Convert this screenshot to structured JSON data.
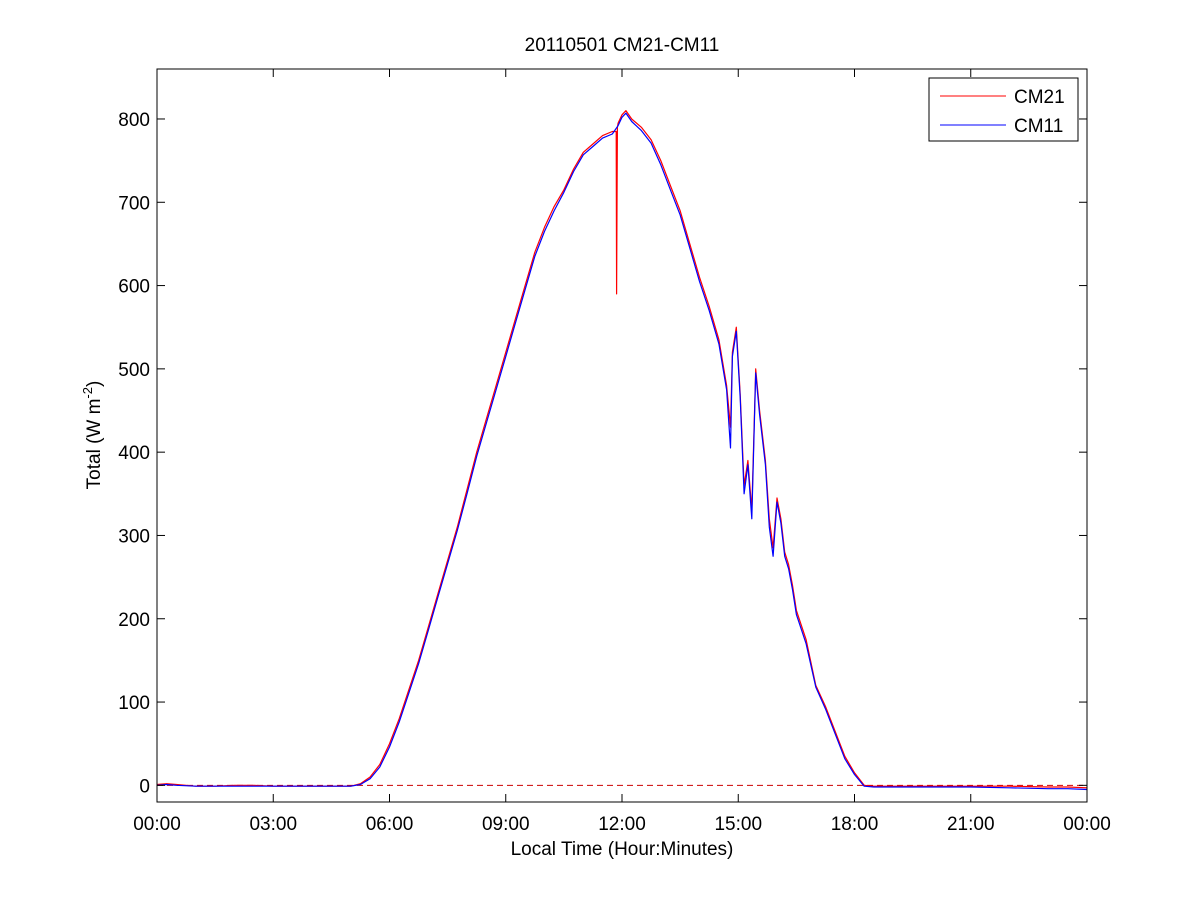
{
  "chart_data": {
    "type": "line",
    "title": "20110501 CM21-CM11",
    "xlabel": "Local Time (Hour:Minutes)",
    "ylabel": {
      "main": "Total (W m",
      "superscript": "-2",
      "close": ")"
    },
    "xlim": [
      0,
      24
    ],
    "ylim": [
      -20,
      860
    ],
    "x_unit": "hours",
    "x_ticks": [
      0,
      3,
      6,
      9,
      12,
      15,
      18,
      21,
      24
    ],
    "x_tick_labels": [
      "00:00",
      "03:00",
      "06:00",
      "09:00",
      "12:00",
      "15:00",
      "18:00",
      "21:00",
      "00:00"
    ],
    "y_ticks": [
      0,
      100,
      200,
      300,
      400,
      500,
      600,
      700,
      800
    ],
    "y_tick_labels": [
      "0",
      "100",
      "200",
      "300",
      "400",
      "500",
      "600",
      "700",
      "800"
    ],
    "grid": false,
    "legend_position": "top-right",
    "reference_line": {
      "y": 0,
      "color": "#cc0000",
      "style": "dashed"
    },
    "series": [
      {
        "name": "CM21",
        "color": "#ff0000",
        "x": [
          0,
          0.25,
          0.5,
          1,
          1.5,
          2,
          2.5,
          3,
          3.5,
          4,
          4.5,
          5,
          5.25,
          5.5,
          5.75,
          6,
          6.25,
          6.5,
          6.75,
          7,
          7.25,
          7.5,
          7.75,
          8,
          8.25,
          8.5,
          8.75,
          9,
          9.25,
          9.5,
          9.75,
          10,
          10.25,
          10.5,
          10.75,
          11,
          11.25,
          11.5,
          11.75,
          11.85,
          11.86,
          11.87,
          11.88,
          11.9,
          12,
          12.1,
          12.25,
          12.5,
          12.75,
          13,
          13.25,
          13.5,
          13.75,
          14,
          14.25,
          14.5,
          14.7,
          14.8,
          14.85,
          14.95,
          15.05,
          15.15,
          15.25,
          15.35,
          15.45,
          15.55,
          15.7,
          15.8,
          15.9,
          16,
          16.1,
          16.2,
          16.3,
          16.4,
          16.5,
          16.75,
          17,
          17.25,
          17.5,
          17.75,
          18,
          18.25,
          18.5,
          18.75,
          19,
          20,
          21,
          22,
          23,
          23.5,
          24
        ],
        "y": [
          1,
          2,
          1,
          -1,
          -1,
          0,
          0,
          -1,
          -1,
          -1,
          -1,
          -1,
          2,
          10,
          25,
          50,
          80,
          115,
          150,
          190,
          230,
          270,
          310,
          355,
          400,
          440,
          480,
          520,
          560,
          600,
          640,
          670,
          695,
          715,
          740,
          760,
          770,
          780,
          785,
          785,
          590,
          695,
          790,
          795,
          805,
          810,
          800,
          790,
          775,
          750,
          720,
          690,
          650,
          610,
          575,
          535,
          480,
          430,
          520,
          550,
          470,
          360,
          390,
          330,
          500,
          450,
          390,
          320,
          285,
          345,
          320,
          280,
          265,
          240,
          210,
          175,
          120,
          95,
          65,
          35,
          15,
          0,
          -1,
          -1,
          -1,
          -1,
          -1,
          -1,
          -2,
          -2,
          -3
        ]
      },
      {
        "name": "CM11",
        "color": "#0000ff",
        "x": [
          0,
          0.25,
          0.5,
          1,
          1.5,
          2,
          2.5,
          3,
          3.5,
          4,
          4.5,
          5,
          5.25,
          5.5,
          5.75,
          6,
          6.25,
          6.5,
          6.75,
          7,
          7.25,
          7.5,
          7.75,
          8,
          8.25,
          8.5,
          8.75,
          9,
          9.25,
          9.5,
          9.75,
          10,
          10.25,
          10.5,
          10.75,
          11,
          11.25,
          11.5,
          11.75,
          11.9,
          12,
          12.1,
          12.25,
          12.5,
          12.75,
          13,
          13.25,
          13.5,
          13.75,
          14,
          14.25,
          14.5,
          14.7,
          14.8,
          14.85,
          14.95,
          15.05,
          15.15,
          15.25,
          15.35,
          15.45,
          15.55,
          15.7,
          15.8,
          15.9,
          16,
          16.1,
          16.2,
          16.3,
          16.4,
          16.5,
          16.75,
          17,
          17.25,
          17.5,
          17.75,
          18,
          18.25,
          18.5,
          18.75,
          19,
          20,
          21,
          22,
          23,
          23.5,
          24
        ],
        "y": [
          0,
          1,
          0,
          -1,
          -1,
          -1,
          -1,
          -1,
          -1,
          -1,
          -1,
          -1,
          1,
          8,
          22,
          46,
          76,
          111,
          146,
          186,
          226,
          266,
          306,
          350,
          395,
          435,
          475,
          515,
          555,
          595,
          635,
          665,
          690,
          712,
          737,
          757,
          767,
          777,
          782,
          792,
          802,
          807,
          797,
          786,
          771,
          745,
          715,
          685,
          645,
          605,
          570,
          530,
          475,
          405,
          515,
          545,
          465,
          350,
          385,
          320,
          495,
          445,
          385,
          310,
          275,
          340,
          315,
          275,
          260,
          235,
          205,
          170,
          118,
          92,
          62,
          32,
          13,
          -1,
          -2,
          -2,
          -2,
          -2,
          -2,
          -3,
          -4,
          -4,
          -5
        ]
      }
    ]
  }
}
